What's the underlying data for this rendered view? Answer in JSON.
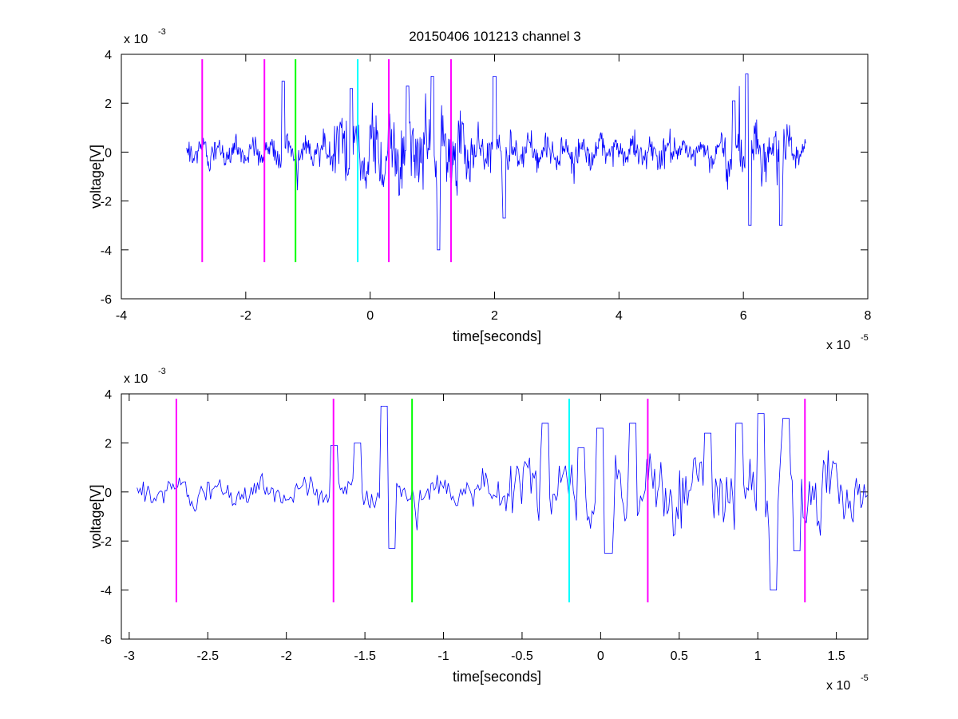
{
  "title": "20150406 101213 channel 3",
  "colors": {
    "signal": "#0000ff",
    "magenta": "#ff00ff",
    "green": "#00ff00",
    "cyan": "#00ffff"
  },
  "chart_data": [
    {
      "type": "line",
      "title": "20150406 101213 channel 3",
      "xlabel": "time[seconds]",
      "ylabel": "voltage[V]",
      "x_exponent_label": "x 10",
      "x_exponent": "-5",
      "y_exponent_label": "x 10",
      "y_exponent": "-3",
      "xlim": [
        -4,
        8
      ],
      "ylim": [
        -6,
        4
      ],
      "x_ticks": [
        -4,
        -2,
        0,
        2,
        4,
        6,
        8
      ],
      "x_tick_labels": [
        "-4",
        "-2",
        "0",
        "2",
        "4",
        "6",
        "8"
      ],
      "y_ticks": [
        -6,
        -4,
        -2,
        0,
        2,
        4
      ],
      "y_tick_labels": [
        "-6",
        "-4",
        "-2",
        "0",
        "2",
        "4"
      ],
      "signal_range": [
        -2.95,
        7.0
      ],
      "markers": [
        {
          "x": -2.7,
          "y0": -4.5,
          "y1": 3.8,
          "color": "magenta"
        },
        {
          "x": -1.7,
          "y0": -4.5,
          "y1": 3.8,
          "color": "magenta"
        },
        {
          "x": -1.2,
          "y0": -4.5,
          "y1": 3.8,
          "color": "green"
        },
        {
          "x": -0.2,
          "y0": -4.5,
          "y1": 3.8,
          "color": "cyan"
        },
        {
          "x": 0.3,
          "y0": -4.5,
          "y1": 3.8,
          "color": "magenta"
        },
        {
          "x": 1.3,
          "y0": -4.5,
          "y1": 3.8,
          "color": "magenta"
        }
      ],
      "peaks": [
        {
          "x": -1.4,
          "y": 2.9
        },
        {
          "x": -0.3,
          "y": 2.6
        },
        {
          "x": 0.6,
          "y": 2.7
        },
        {
          "x": 1.1,
          "y": -4.0
        },
        {
          "x": 1.0,
          "y": 3.1
        },
        {
          "x": 2.0,
          "y": 3.1
        },
        {
          "x": 2.15,
          "y": -2.7
        },
        {
          "x": 6.05,
          "y": 3.2
        },
        {
          "x": 6.1,
          "y": -3.0
        },
        {
          "x": 6.6,
          "y": -3.0
        },
        {
          "x": 5.85,
          "y": 2.1
        }
      ]
    },
    {
      "type": "line",
      "xlabel": "time[seconds]",
      "ylabel": "voltage[V]",
      "x_exponent_label": "x 10",
      "x_exponent": "-5",
      "y_exponent_label": "x 10",
      "y_exponent": "-3",
      "xlim": [
        -3.05,
        1.7
      ],
      "ylim": [
        -6,
        4
      ],
      "x_ticks": [
        -3,
        -2.5,
        -2,
        -1.5,
        -1,
        -0.5,
        0,
        0.5,
        1,
        1.5
      ],
      "x_tick_labels": [
        "-3",
        "-2.5",
        "-2",
        "-1.5",
        "-1",
        "-0.5",
        "0",
        "0.5",
        "1",
        "1.5"
      ],
      "y_ticks": [
        -6,
        -4,
        -2,
        0,
        2,
        4
      ],
      "y_tick_labels": [
        "-6",
        "-4",
        "-2",
        "0",
        "2",
        "4"
      ],
      "signal_range": [
        -2.95,
        1.7
      ],
      "markers": [
        {
          "x": -2.7,
          "y0": -4.5,
          "y1": 3.8,
          "color": "magenta"
        },
        {
          "x": -1.7,
          "y0": -4.5,
          "y1": 3.8,
          "color": "magenta"
        },
        {
          "x": -1.2,
          "y0": -4.5,
          "y1": 3.8,
          "color": "green"
        },
        {
          "x": -0.2,
          "y0": -4.5,
          "y1": 3.8,
          "color": "cyan"
        },
        {
          "x": 0.3,
          "y0": -4.5,
          "y1": 3.8,
          "color": "magenta"
        },
        {
          "x": 1.3,
          "y0": -4.5,
          "y1": 3.8,
          "color": "magenta"
        }
      ],
      "peaks": [
        {
          "x": -1.38,
          "y": 3.5
        },
        {
          "x": -1.33,
          "y": -2.3
        },
        {
          "x": -0.35,
          "y": 2.8
        },
        {
          "x": -0.12,
          "y": 1.8
        },
        {
          "x": 0.0,
          "y": 2.6
        },
        {
          "x": 0.2,
          "y": 2.8
        },
        {
          "x": 0.05,
          "y": -2.5
        },
        {
          "x": 0.68,
          "y": 2.4
        },
        {
          "x": 0.88,
          "y": 2.8
        },
        {
          "x": 1.02,
          "y": 3.2
        },
        {
          "x": 1.1,
          "y": -4.0
        },
        {
          "x": 1.18,
          "y": 3.0
        },
        {
          "x": 1.25,
          "y": -2.4
        },
        {
          "x": -1.55,
          "y": 2.0
        },
        {
          "x": -1.7,
          "y": 1.9
        }
      ]
    }
  ]
}
